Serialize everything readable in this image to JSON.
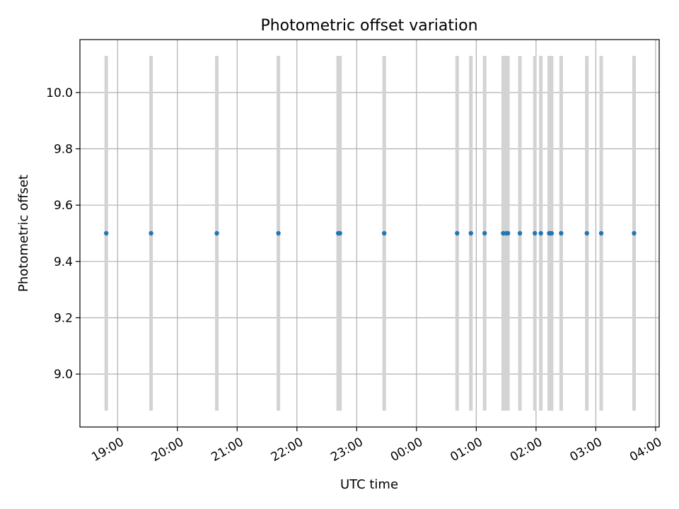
{
  "chart_data": {
    "type": "scatter",
    "title": "Photometric offset variation",
    "xlabel": "UTC time",
    "ylabel": "Photometric offset",
    "x_unit": "UTC hours (day 2 continues past 24:00)",
    "xlim": [
      18.37,
      28.06
    ],
    "ylim": [
      8.812,
      10.188
    ],
    "x_ticks": [
      {
        "value": 19,
        "label": "19:00"
      },
      {
        "value": 20,
        "label": "20:00"
      },
      {
        "value": 21,
        "label": "21:00"
      },
      {
        "value": 22,
        "label": "22:00"
      },
      {
        "value": 23,
        "label": "23:00"
      },
      {
        "value": 24,
        "label": "00:00"
      },
      {
        "value": 25,
        "label": "01:00"
      },
      {
        "value": 26,
        "label": "02:00"
      },
      {
        "value": 27,
        "label": "03:00"
      },
      {
        "value": 28,
        "label": "04:00"
      }
    ],
    "y_ticks": [
      {
        "value": 9.0,
        "label": "9.0"
      },
      {
        "value": 9.2,
        "label": "9.2"
      },
      {
        "value": 9.4,
        "label": "9.4"
      },
      {
        "value": 9.6,
        "label": "9.6"
      },
      {
        "value": 9.8,
        "label": "9.8"
      },
      {
        "value": 10.0,
        "label": "10.0"
      }
    ],
    "grid": true,
    "vlines": {
      "color": "#d3d3d3",
      "ymin": 8.87,
      "ymax": 10.13,
      "x": [
        18.81,
        19.56,
        20.66,
        21.69,
        22.69,
        22.72,
        23.46,
        24.68,
        24.91,
        25.14,
        25.45,
        25.5,
        25.53,
        25.73,
        25.98,
        26.08,
        26.22,
        26.26,
        26.42,
        26.85,
        27.09,
        27.64
      ]
    },
    "series": [
      {
        "color": "#1f77b4",
        "points": [
          {
            "x": 18.81,
            "y": 9.5
          },
          {
            "x": 19.56,
            "y": 9.5
          },
          {
            "x": 20.66,
            "y": 9.5
          },
          {
            "x": 21.69,
            "y": 9.5
          },
          {
            "x": 22.69,
            "y": 9.5
          },
          {
            "x": 22.72,
            "y": 9.5
          },
          {
            "x": 23.46,
            "y": 9.5
          },
          {
            "x": 24.68,
            "y": 9.5
          },
          {
            "x": 24.91,
            "y": 9.5
          },
          {
            "x": 25.14,
            "y": 9.5
          },
          {
            "x": 25.45,
            "y": 9.5
          },
          {
            "x": 25.5,
            "y": 9.5
          },
          {
            "x": 25.53,
            "y": 9.5
          },
          {
            "x": 25.73,
            "y": 9.5
          },
          {
            "x": 25.98,
            "y": 9.5
          },
          {
            "x": 26.08,
            "y": 9.5
          },
          {
            "x": 26.22,
            "y": 9.5
          },
          {
            "x": 26.26,
            "y": 9.5
          },
          {
            "x": 26.42,
            "y": 9.5
          },
          {
            "x": 26.85,
            "y": 9.5
          },
          {
            "x": 27.09,
            "y": 9.5
          },
          {
            "x": 27.64,
            "y": 9.5
          }
        ]
      }
    ]
  }
}
